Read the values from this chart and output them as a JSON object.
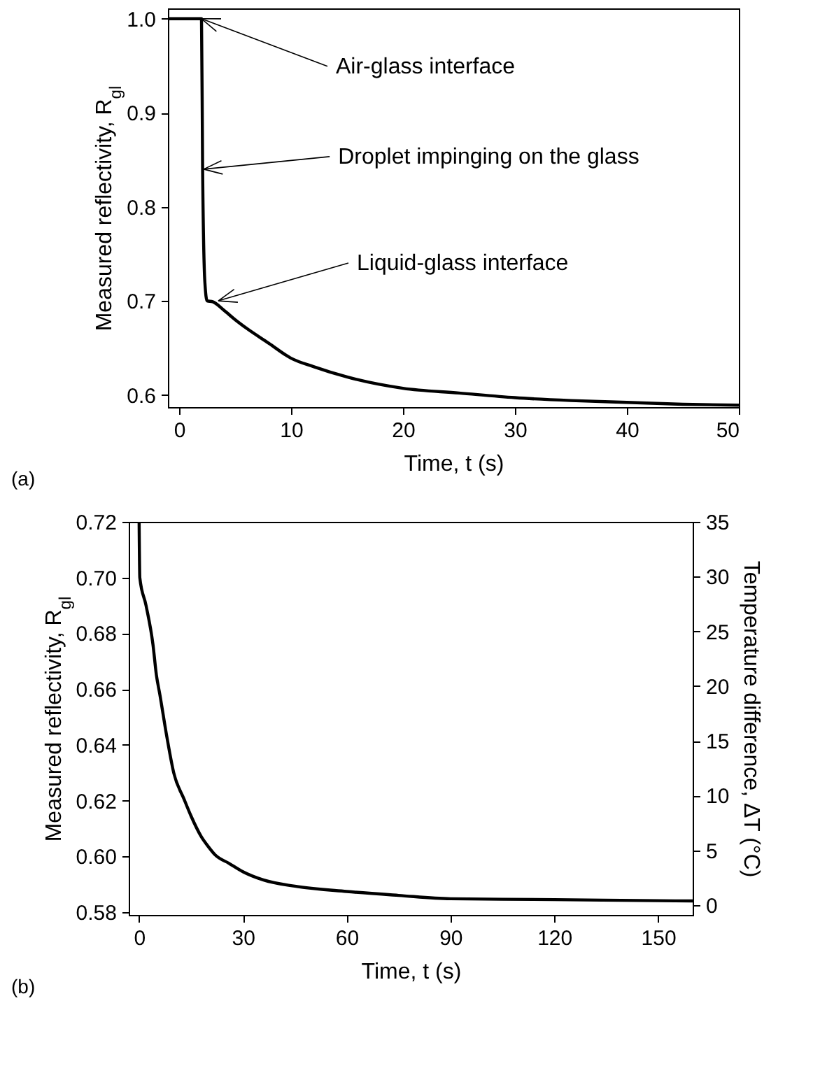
{
  "chart_data": [
    {
      "type": "line",
      "xlabel": "Time, t (s)",
      "ylabel": "Measured reflectivity, R$_{gl}$",
      "xlim": [
        -1,
        50
      ],
      "ylim": [
        0.587,
        1.011
      ],
      "xticks": [
        0,
        10,
        20,
        30,
        40,
        50
      ],
      "yticks": [
        {
          "value": 0.6,
          "label": "0.6"
        },
        {
          "value": 0.7,
          "label": "0.7"
        },
        {
          "value": 0.8,
          "label": "0.8"
        },
        {
          "value": 0.9,
          "label": "0.9"
        },
        {
          "value": 1,
          "label": "1.0"
        }
      ],
      "grid": false,
      "series": [
        {
          "color": "#000000",
          "x": [
            -1,
            2,
            2.1,
            2.3,
            2.5,
            3,
            4,
            5,
            6,
            8,
            10,
            12,
            15,
            20,
            25,
            30,
            35,
            40,
            45,
            50
          ],
          "values": [
            1.0,
            1.0,
            0.84,
            0.72,
            0.7,
            0.699,
            0.69,
            0.68,
            0.671,
            0.655,
            0.639,
            0.63,
            0.619,
            0.607,
            0.602,
            0.597,
            0.594,
            0.592,
            0.59,
            0.589
          ]
        }
      ],
      "annotations": [
        {
          "text": "Air-glass interface",
          "x": 2,
          "y": 1.0
        },
        {
          "text": "Droplet impinging on the glass",
          "x": 2.2,
          "y": 0.84
        },
        {
          "text": "Liquid-glass interface",
          "x": 3.5,
          "y": 0.7
        },
        "(a)"
      ]
    },
    {
      "type": "line",
      "xlabel": "Time, t (s)",
      "ylabel": "Measured reflectivity, R$_{gl}$",
      "y2label": "Temperature difference, ΔT (°C)",
      "xlim": [
        -3,
        160
      ],
      "ylim": [
        0.579,
        0.72
      ],
      "y2lim": [
        -0.9,
        35
      ],
      "xticks": [
        0,
        30,
        60,
        90,
        120,
        150
      ],
      "yticks": [
        0.58,
        {
          "value": 0.6,
          "label": "0.60"
        },
        0.62,
        0.64,
        0.66,
        0.68,
        {
          "value": 0.7,
          "label": "0.70"
        },
        0.72
      ],
      "y2ticks": [
        0,
        5,
        10,
        15,
        20,
        25,
        30,
        35
      ],
      "grid": false,
      "series": [
        {
          "color": "#000000",
          "x": [
            0,
            0.2,
            2,
            4,
            5,
            6,
            8,
            10,
            13,
            15,
            18,
            20,
            22,
            26,
            30,
            36,
            45,
            60,
            75,
            90,
            120,
            150,
            160
          ],
          "values": [
            0.72,
            0.7,
            0.69,
            0.676,
            0.665,
            0.658,
            0.643,
            0.63,
            0.6205,
            0.6145,
            0.607,
            0.6035,
            0.6005,
            0.5975,
            0.5945,
            0.5915,
            0.5893,
            0.5874,
            0.586,
            0.5848,
            0.5845,
            0.5841,
            0.584
          ]
        }
      ],
      "annotations": [
        "(b)"
      ]
    }
  ]
}
